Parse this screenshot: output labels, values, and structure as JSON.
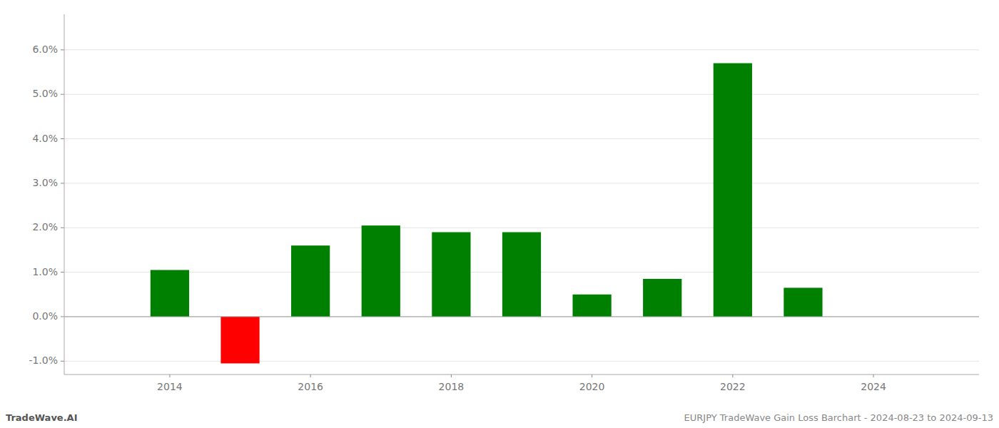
{
  "chart_data": {
    "type": "bar",
    "x": [
      2014,
      2015,
      2016,
      2017,
      2018,
      2019,
      2020,
      2021,
      2022,
      2023
    ],
    "values": [
      0.0105,
      -0.0105,
      0.016,
      0.0205,
      0.019,
      0.019,
      0.005,
      0.0085,
      0.057,
      0.0065
    ],
    "colors": [
      "#008000",
      "#ff0000",
      "#008000",
      "#008000",
      "#008000",
      "#008000",
      "#008000",
      "#008000",
      "#008000",
      "#008000"
    ],
    "xlim": [
      2012.5,
      2025.5
    ],
    "xticks": [
      2014,
      2016,
      2018,
      2020,
      2022,
      2024
    ],
    "ylim": [
      -0.013,
      0.068
    ],
    "yticks": [
      {
        "value": -0.01,
        "label": "-1.0%"
      },
      {
        "value": 0.0,
        "label": "0.0%"
      },
      {
        "value": 0.01,
        "label": "1.0%"
      },
      {
        "value": 0.02,
        "label": "2.0%"
      },
      {
        "value": 0.03,
        "label": "3.0%"
      },
      {
        "value": 0.04,
        "label": "4.0%"
      },
      {
        "value": 0.05,
        "label": "5.0%"
      },
      {
        "value": 0.06,
        "label": "6.0%"
      }
    ],
    "grid": true,
    "annotations": [
      "TradeWave.AI",
      "EURJPY TradeWave Gain Loss Barchart - 2024-08-23 to 2024-09-13"
    ]
  }
}
